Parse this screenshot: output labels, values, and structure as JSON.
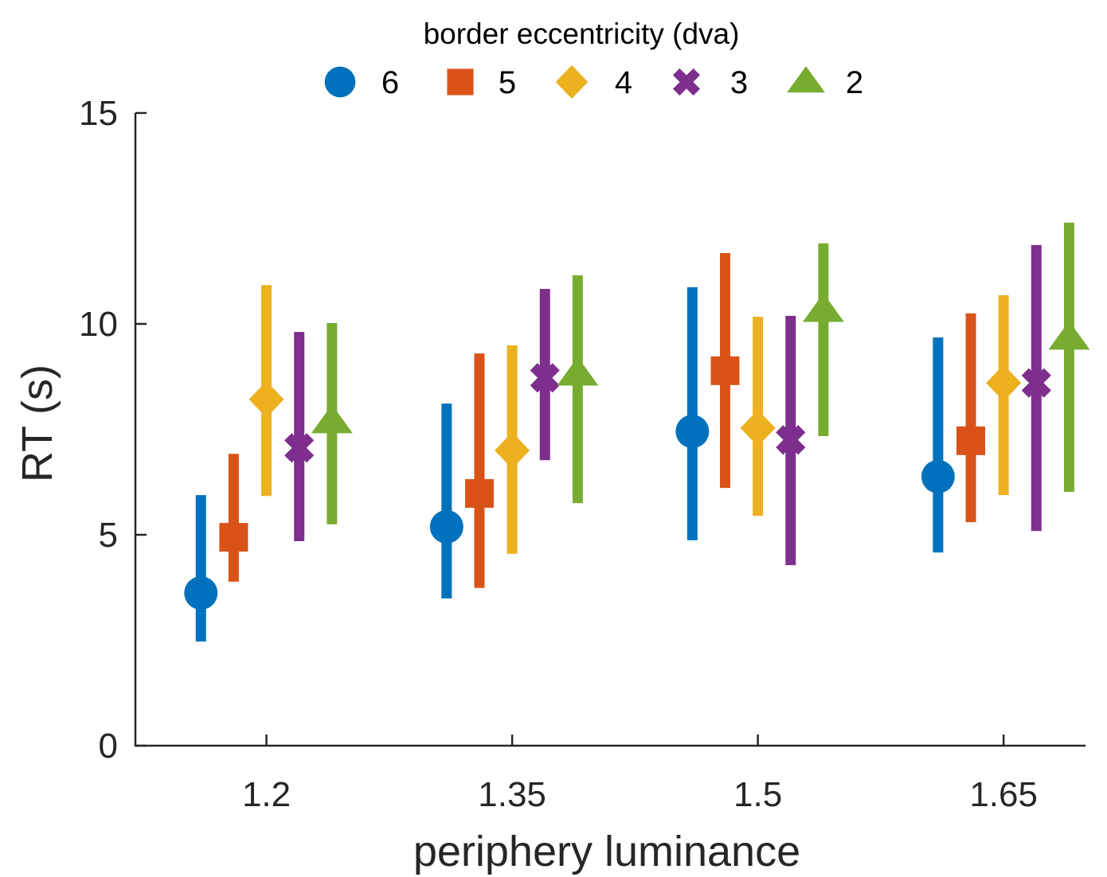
{
  "chart_data": {
    "type": "scatter",
    "subtype": "errorbar",
    "title": "",
    "xlabel": "periphery luminance",
    "ylabel": "RT (s)",
    "x_categories": [
      "1.2",
      "1.35",
      "1.5",
      "1.65"
    ],
    "x": [
      1.2,
      1.35,
      1.5,
      1.65
    ],
    "xlim": [
      1.12,
      1.7
    ],
    "ylim": [
      0,
      15
    ],
    "yticks": [
      0,
      5,
      10,
      15
    ],
    "ytick_labels": [
      "0",
      "5",
      "10",
      "15"
    ],
    "grid": false,
    "legend": {
      "title": "border eccentricity (dva)",
      "placement": "top-center",
      "orientation": "horizontal"
    },
    "series": [
      {
        "name": "6",
        "marker": "circle",
        "color": "#0072BD",
        "values": [
          3.62,
          5.19,
          7.45,
          6.38
        ],
        "upper": [
          5.94,
          8.11,
          10.87,
          9.68
        ],
        "lower": [
          2.47,
          3.49,
          4.87,
          4.58
        ]
      },
      {
        "name": "5",
        "marker": "square",
        "color": "#D95319",
        "values": [
          4.94,
          5.98,
          8.89,
          7.23
        ],
        "upper": [
          6.92,
          9.3,
          11.68,
          10.25
        ],
        "lower": [
          3.89,
          3.74,
          6.11,
          5.3
        ]
      },
      {
        "name": "4",
        "marker": "diamond",
        "color": "#EDB120",
        "values": [
          8.21,
          7.0,
          7.53,
          8.6
        ],
        "upper": [
          10.92,
          9.49,
          10.17,
          10.68
        ],
        "lower": [
          5.92,
          4.55,
          5.45,
          5.94
        ]
      },
      {
        "name": "3",
        "marker": "x",
        "color": "#7E2F8E",
        "values": [
          7.06,
          8.72,
          7.25,
          8.6
        ],
        "upper": [
          9.81,
          10.83,
          10.19,
          11.87
        ],
        "lower": [
          4.85,
          6.77,
          4.28,
          5.09
        ]
      },
      {
        "name": "2",
        "marker": "triangle",
        "color": "#77AC30",
        "values": [
          7.68,
          8.81,
          10.32,
          9.66
        ],
        "upper": [
          10.02,
          11.15,
          11.91,
          12.4
        ],
        "lower": [
          5.25,
          5.75,
          7.34,
          6.02
        ]
      }
    ]
  }
}
